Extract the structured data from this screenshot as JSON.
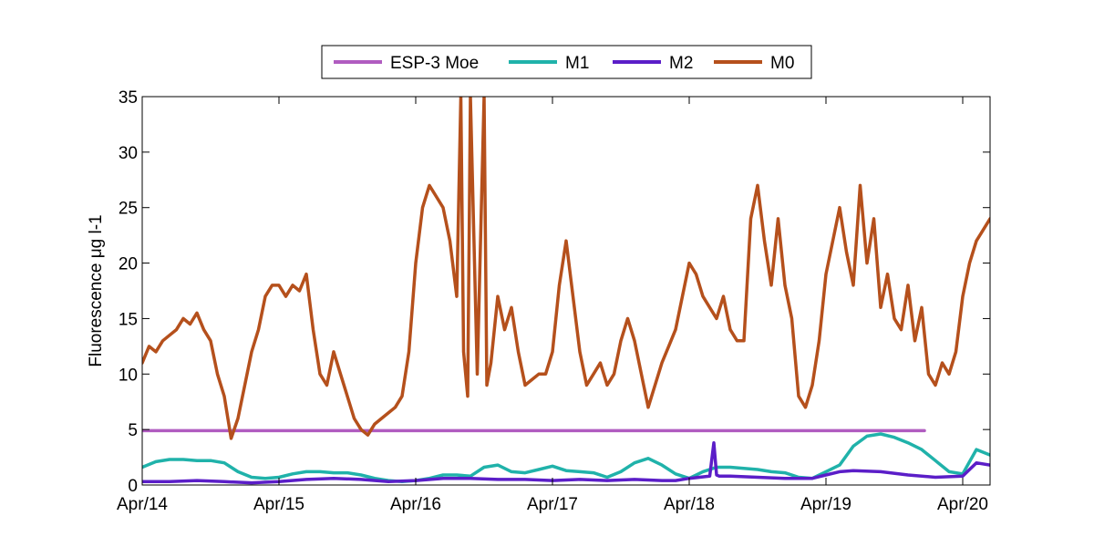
{
  "chart_data": {
    "type": "line",
    "title": "",
    "xlabel": "",
    "ylabel": "Fluorescence μg l-1",
    "xlim": [
      0,
      6.2
    ],
    "ylim": [
      0,
      35
    ],
    "x_ticks": [
      {
        "value": 0,
        "label": "Apr/14"
      },
      {
        "value": 1,
        "label": "Apr/15"
      },
      {
        "value": 2,
        "label": "Apr/16"
      },
      {
        "value": 3,
        "label": "Apr/17"
      },
      {
        "value": 4,
        "label": "Apr/18"
      },
      {
        "value": 5,
        "label": "Apr/19"
      },
      {
        "value": 6,
        "label": "Apr/20"
      }
    ],
    "y_ticks": [
      0,
      5,
      10,
      15,
      20,
      25,
      30,
      35
    ],
    "legend_position": "top-center",
    "series": [
      {
        "name": "ESP-3 Moe",
        "color": "#b05cc0",
        "x": [
          0,
          2.35,
          2.38,
          2.46,
          2.56,
          2.65,
          2.75,
          2.85,
          2.95,
          3.05,
          3.15,
          3.25,
          3.35,
          3.42,
          3.5,
          3.58,
          3.68,
          3.72,
          3.82,
          3.92,
          4.02,
          4.1,
          4.18,
          4.22,
          4.32,
          4.42,
          4.52,
          4.62,
          4.72,
          4.78,
          4.85,
          4.95,
          5.02,
          5.08,
          5.12,
          5.22,
          5.32,
          5.42,
          5.46,
          5.52,
          5.6,
          5.66,
          5.72
        ],
        "y": [
          4.9,
          4.9,
          4.9,
          4.9,
          4.9,
          4.9,
          4.9,
          4.9,
          4.9,
          4.9,
          4.9,
          4.9,
          4.9,
          4.9,
          4.9,
          4.9,
          4.9,
          4.9,
          4.9,
          4.9,
          4.9,
          4.9,
          4.9,
          4.9,
          4.9,
          4.9,
          4.9,
          4.9,
          4.9,
          4.9,
          4.9,
          4.9,
          4.9,
          4.9,
          4.9,
          4.9,
          4.9,
          4.9,
          4.9,
          4.9,
          4.9,
          4.9,
          4.9
        ]
      },
      {
        "name": "M1",
        "color": "#20b2aa",
        "x": [
          0,
          0.1,
          0.2,
          0.3,
          0.4,
          0.5,
          0.6,
          0.7,
          0.8,
          0.9,
          1.0,
          1.1,
          1.2,
          1.3,
          1.4,
          1.5,
          1.6,
          1.7,
          1.8,
          1.9,
          2.0,
          2.1,
          2.2,
          2.3,
          2.4,
          2.5,
          2.6,
          2.7,
          2.8,
          2.9,
          3.0,
          3.1,
          3.2,
          3.3,
          3.4,
          3.5,
          3.6,
          3.7,
          3.8,
          3.9,
          4.0,
          4.1,
          4.2,
          4.3,
          4.4,
          4.5,
          4.6,
          4.7,
          4.8,
          4.9,
          5.0,
          5.1,
          5.2,
          5.3,
          5.4,
          5.5,
          5.6,
          5.7,
          5.8,
          5.9,
          6.0,
          6.1,
          6.2
        ],
        "y": [
          1.6,
          2.1,
          2.3,
          2.3,
          2.2,
          2.2,
          2.0,
          1.2,
          0.7,
          0.6,
          0.7,
          1.0,
          1.2,
          1.2,
          1.1,
          1.1,
          0.9,
          0.6,
          0.4,
          0.3,
          0.4,
          0.6,
          0.9,
          0.9,
          0.8,
          1.6,
          1.8,
          1.2,
          1.1,
          1.4,
          1.7,
          1.3,
          1.2,
          1.1,
          0.7,
          1.2,
          2.0,
          2.4,
          1.8,
          1.0,
          0.6,
          1.2,
          1.6,
          1.6,
          1.5,
          1.4,
          1.2,
          1.1,
          0.7,
          0.6,
          1.2,
          1.8,
          3.5,
          4.4,
          4.6,
          4.3,
          3.8,
          3.2,
          2.2,
          1.2,
          1.0,
          3.2,
          2.7
        ]
      },
      {
        "name": "M2",
        "color": "#5b1ec8",
        "x": [
          0,
          0.2,
          0.4,
          0.6,
          0.8,
          1.0,
          1.2,
          1.4,
          1.6,
          1.8,
          2.0,
          2.2,
          2.4,
          2.6,
          2.8,
          3.0,
          3.2,
          3.4,
          3.6,
          3.8,
          3.9,
          4.0,
          4.15,
          4.18,
          4.2,
          4.22,
          4.3,
          4.5,
          4.7,
          4.9,
          5.0,
          5.1,
          5.2,
          5.4,
          5.6,
          5.8,
          6.0,
          6.1,
          6.2
        ],
        "y": [
          0.3,
          0.3,
          0.4,
          0.3,
          0.2,
          0.3,
          0.5,
          0.6,
          0.5,
          0.3,
          0.4,
          0.6,
          0.6,
          0.5,
          0.5,
          0.4,
          0.5,
          0.4,
          0.5,
          0.4,
          0.4,
          0.6,
          0.8,
          3.8,
          0.9,
          0.8,
          0.8,
          0.7,
          0.6,
          0.6,
          0.9,
          1.2,
          1.3,
          1.2,
          0.9,
          0.7,
          0.8,
          2.0,
          1.8
        ]
      },
      {
        "name": "M0",
        "color": "#b5501c",
        "x": [
          0,
          0.05,
          0.1,
          0.15,
          0.2,
          0.25,
          0.3,
          0.35,
          0.4,
          0.45,
          0.5,
          0.55,
          0.6,
          0.65,
          0.7,
          0.75,
          0.8,
          0.85,
          0.9,
          0.95,
          1.0,
          1.05,
          1.1,
          1.15,
          1.2,
          1.25,
          1.3,
          1.35,
          1.4,
          1.45,
          1.5,
          1.55,
          1.6,
          1.65,
          1.7,
          1.75,
          1.8,
          1.85,
          1.9,
          1.95,
          2.0,
          2.05,
          2.1,
          2.15,
          2.2,
          2.25,
          2.3,
          2.33,
          2.35,
          2.38,
          2.4,
          2.45,
          2.5,
          2.52,
          2.55,
          2.6,
          2.65,
          2.7,
          2.75,
          2.8,
          2.85,
          2.9,
          2.95,
          3.0,
          3.05,
          3.1,
          3.15,
          3.2,
          3.25,
          3.3,
          3.35,
          3.4,
          3.45,
          3.5,
          3.55,
          3.6,
          3.65,
          3.7,
          3.75,
          3.8,
          3.85,
          3.9,
          3.95,
          4.0,
          4.05,
          4.1,
          4.15,
          4.2,
          4.25,
          4.3,
          4.35,
          4.4,
          4.45,
          4.5,
          4.55,
          4.6,
          4.65,
          4.7,
          4.75,
          4.8,
          4.85,
          4.9,
          4.95,
          5.0,
          5.05,
          5.1,
          5.15,
          5.2,
          5.25,
          5.3,
          5.35,
          5.4,
          5.45,
          5.5,
          5.55,
          5.6,
          5.65,
          5.7,
          5.75,
          5.8,
          5.85,
          5.9,
          5.95,
          6.0,
          6.05,
          6.1,
          6.15,
          6.2
        ],
        "y": [
          11,
          12.5,
          12,
          13,
          13.5,
          14,
          15,
          14.5,
          15.5,
          14,
          13,
          10,
          8,
          4.2,
          6,
          9,
          12,
          14,
          17,
          18,
          18,
          17,
          18,
          17.5,
          19,
          14,
          10,
          9,
          12,
          10,
          8,
          6,
          5,
          4.5,
          5.5,
          6,
          6.5,
          7,
          8,
          12,
          20,
          25,
          27,
          26,
          25,
          22,
          17,
          35,
          12,
          8,
          35,
          10,
          35,
          9,
          11,
          17,
          14,
          16,
          12,
          9,
          9.5,
          10,
          10,
          12,
          18,
          22,
          17,
          12,
          9,
          10,
          11,
          9,
          10,
          13,
          15,
          13,
          10,
          7,
          9,
          11,
          12.5,
          14,
          17,
          20,
          19,
          17,
          16,
          15,
          17,
          14,
          13,
          13,
          24,
          27,
          22,
          18,
          24,
          18,
          15,
          8,
          7,
          9,
          13,
          19,
          22,
          25,
          21,
          18,
          27,
          20,
          24,
          16,
          19,
          15,
          14,
          18,
          13,
          16,
          10,
          9,
          11,
          10,
          12,
          17,
          20,
          22,
          23,
          24
        ]
      }
    ]
  }
}
